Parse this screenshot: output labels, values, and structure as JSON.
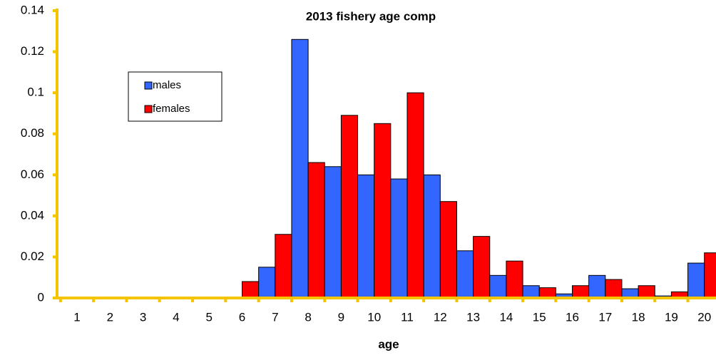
{
  "chart_data": {
    "type": "bar",
    "title": "2013 fishery age comp",
    "x_label": "age",
    "categories": [
      "1",
      "2",
      "3",
      "4",
      "5",
      "6",
      "7",
      "8",
      "9",
      "10",
      "11",
      "12",
      "13",
      "14",
      "15",
      "16",
      "17",
      "18",
      "19",
      "20"
    ],
    "series": [
      {
        "name": "males",
        "color": "#3366ff",
        "values": [
          0,
          0,
          0,
          0,
          0,
          0,
          0.015,
          0.126,
          0.064,
          0.06,
          0.058,
          0.06,
          0.023,
          0.011,
          0.006,
          0.002,
          0.011,
          0.0045,
          0.001,
          0.017
        ]
      },
      {
        "name": "females",
        "color": "#ff0000",
        "values": [
          0,
          0,
          0,
          0,
          0,
          0.008,
          0.031,
          0.066,
          0.089,
          0.085,
          0.1,
          0.047,
          0.03,
          0.018,
          0.005,
          0.006,
          0.009,
          0.006,
          0.003,
          0.022
        ]
      }
    ],
    "ylim": [
      0,
      0.14
    ],
    "yticks": [
      0,
      0.02,
      0.04,
      0.06,
      0.08,
      0.1,
      0.12,
      0.14
    ],
    "axis_color": "#f5c400"
  }
}
